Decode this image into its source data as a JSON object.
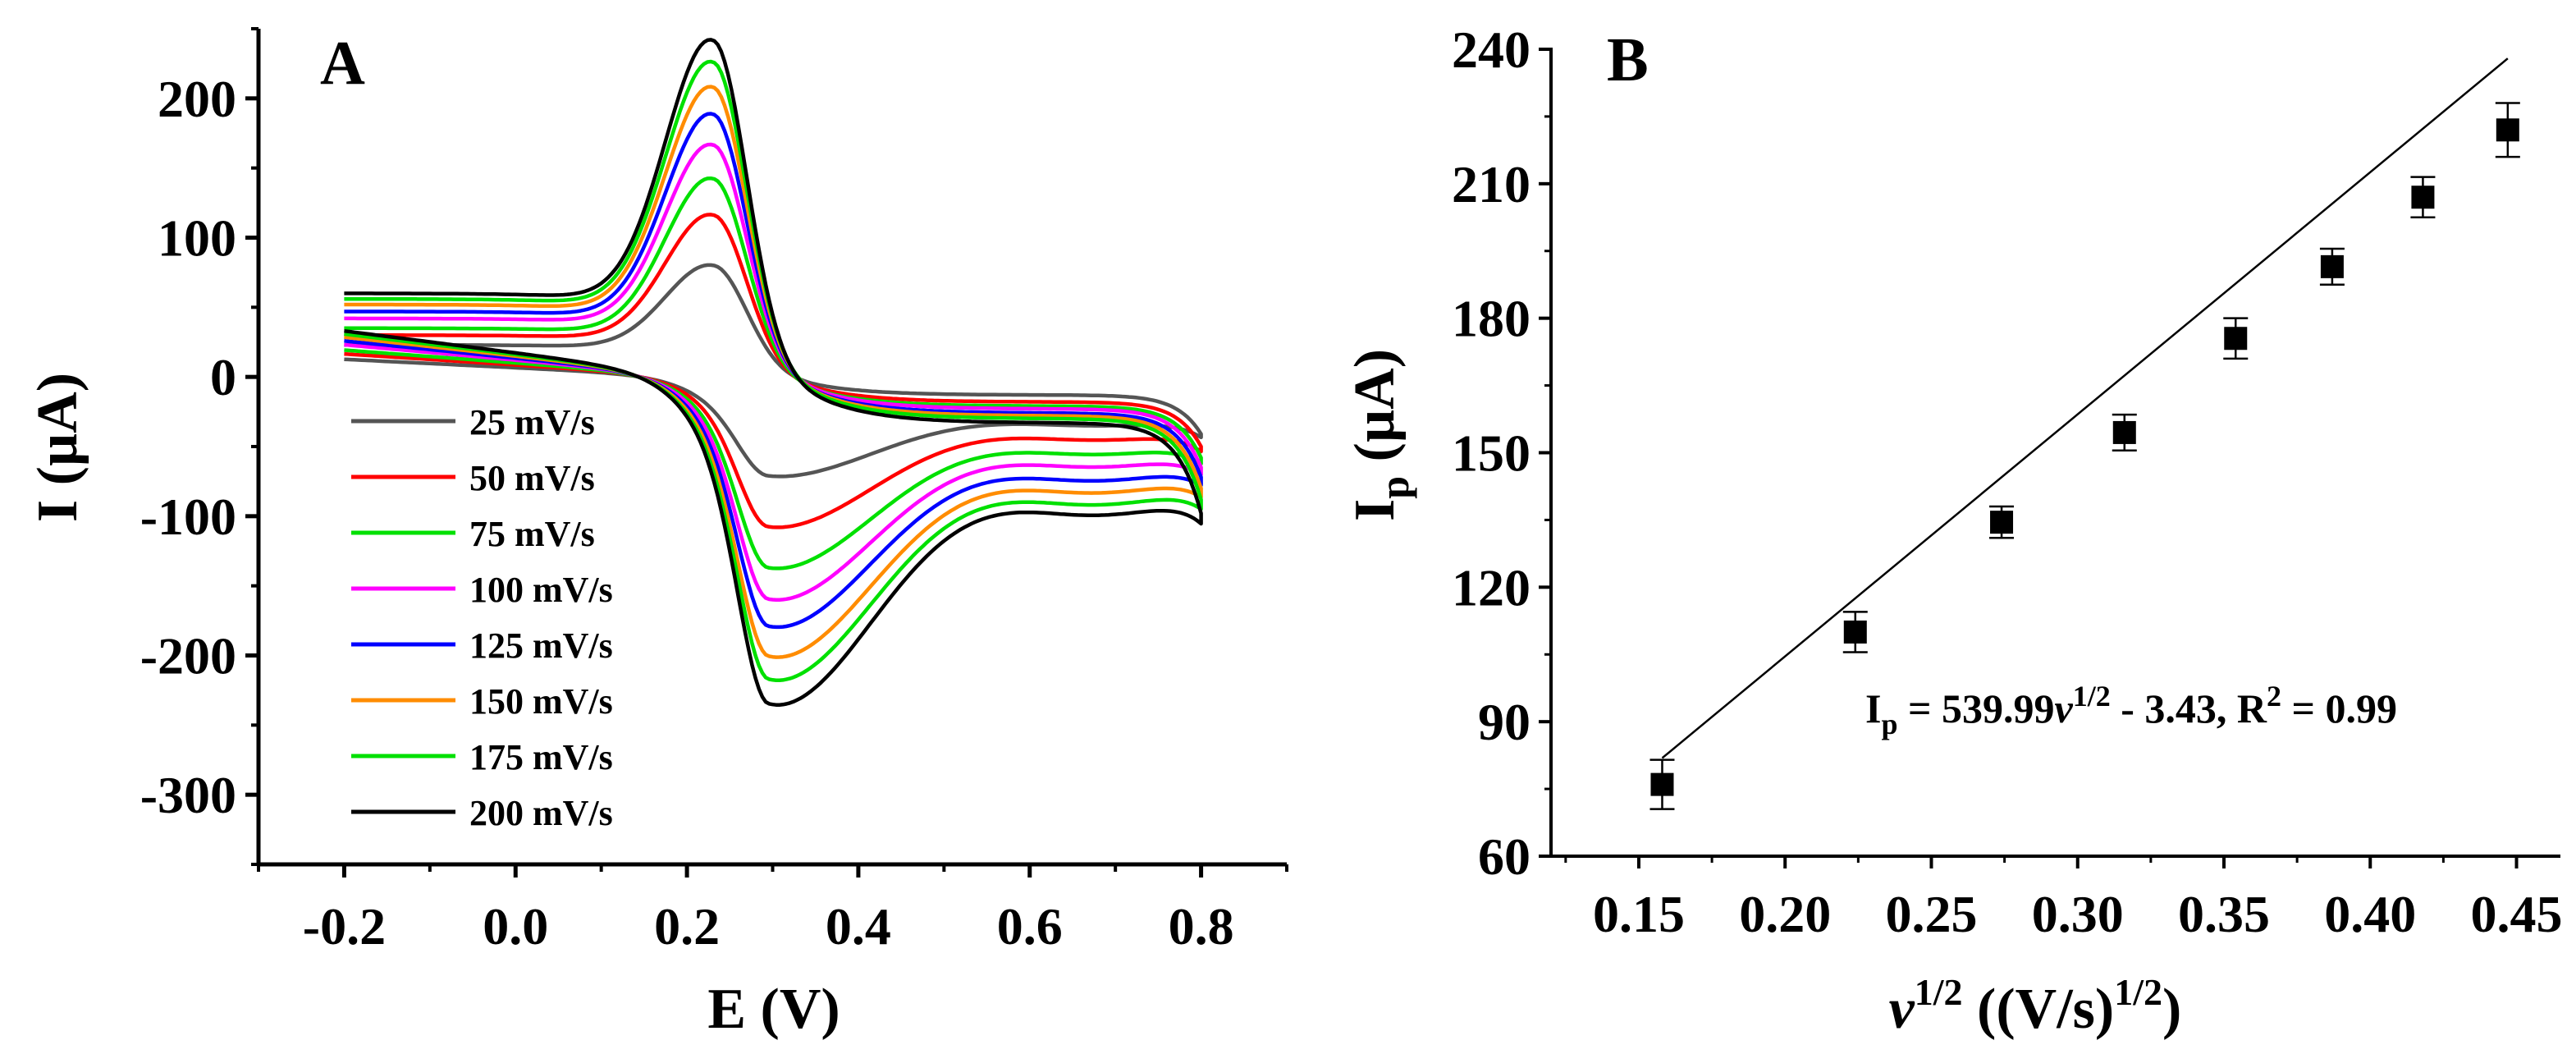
{
  "chart_data": [
    {
      "panel": "A",
      "type": "line",
      "title": "",
      "xlabel": "E (V)",
      "ylabel": "I (µA)",
      "xlim": [
        -0.3,
        0.9
      ],
      "ylim": [
        -350,
        250
      ],
      "xticks": [
        -0.2,
        0.0,
        0.2,
        0.4,
        0.6,
        0.8
      ],
      "xtick_labels": [
        "-0.2",
        "0.0",
        "0.2",
        "0.4",
        "0.6",
        "0.8"
      ],
      "yticks": [
        200,
        100,
        0,
        -100,
        -200,
        -300
      ],
      "ytick_labels": [
        "200",
        "100",
        "0",
        "-100",
        "-200",
        "-300"
      ],
      "legend_position": "lower-left",
      "series": [
        {
          "name": "25 mV/s",
          "color": "#555555",
          "ipa": 75,
          "ipc": -73,
          "cap_start": 23,
          "cap_end": -13,
          "tail_low": -28,
          "rev_end": -41
        },
        {
          "name": "50 mV/s",
          "color": "#ff0000",
          "ipa": 110,
          "ipc": -110,
          "cap_start": 30,
          "cap_end": -18,
          "tail_low": -35,
          "rev_end": -50
        },
        {
          "name": "75 mV/s",
          "color": "#00e000",
          "ipa": 135,
          "ipc": -140,
          "cap_start": 35,
          "cap_end": -21,
          "tail_low": -43,
          "rev_end": -58
        },
        {
          "name": "100 mV/s",
          "color": "#ff00ff",
          "ipa": 157,
          "ipc": -163,
          "cap_start": 42,
          "cap_end": -23,
          "tail_low": -50,
          "rev_end": -65
        },
        {
          "name": "125 mV/s",
          "color": "#0000ff",
          "ipa": 178,
          "ipc": -183,
          "cap_start": 47,
          "cap_end": -26,
          "tail_low": -58,
          "rev_end": -72
        },
        {
          "name": "150 mV/s",
          "color": "#ff8c00",
          "ipa": 196,
          "ipc": -205,
          "cap_start": 52,
          "cap_end": -28,
          "tail_low": -65,
          "rev_end": -80
        },
        {
          "name": "175 mV/s",
          "color": "#00e000",
          "ipa": 213,
          "ipc": -222,
          "cap_start": 56,
          "cap_end": -30,
          "tail_low": -72,
          "rev_end": -88
        },
        {
          "name": "200 mV/s",
          "color": "#000000",
          "ipa": 228,
          "ipc": -240,
          "cap_start": 60,
          "cap_end": -33,
          "tail_low": -78,
          "rev_end": -98
        }
      ]
    },
    {
      "panel": "B",
      "type": "scatter",
      "title": "",
      "xlabel": "v1/2 ((V/s)1/2)",
      "ylabel": "Ip (µA)",
      "xlim": [
        0.12,
        0.465
      ],
      "ylim": [
        60,
        240
      ],
      "xticks": [
        0.15,
        0.2,
        0.25,
        0.3,
        0.35,
        0.4,
        0.45
      ],
      "xtick_labels": [
        "0.15",
        "0.20",
        "0.25",
        "0.30",
        "0.35",
        "0.40",
        "0.45"
      ],
      "yticks": [
        60,
        90,
        120,
        150,
        180,
        210,
        240
      ],
      "ytick_labels": [
        "60",
        "90",
        "120",
        "150",
        "180",
        "210",
        "240"
      ],
      "points": [
        {
          "x": 0.158,
          "y": 76,
          "err": 5.5
        },
        {
          "x": 0.224,
          "y": 110,
          "err": 4.5
        },
        {
          "x": 0.274,
          "y": 134.5,
          "err": 3.5
        },
        {
          "x": 0.316,
          "y": 154.5,
          "err": 4
        },
        {
          "x": 0.354,
          "y": 175.5,
          "err": 4.5
        },
        {
          "x": 0.387,
          "y": 191.5,
          "err": 4
        },
        {
          "x": 0.418,
          "y": 207,
          "err": 4.5
        },
        {
          "x": 0.447,
          "y": 222,
          "err": 6
        }
      ],
      "fit": {
        "slope": 539.99,
        "intercept": -3.43,
        "x_range": [
          0.158,
          0.447
        ]
      },
      "annotation": {
        "lhs_base": "I",
        "lhs_sub": "p",
        "eq_mid": " = 539.99",
        "eq_v": "v",
        "eq_sup": "1/2",
        "eq_tail": " - 3.43, R",
        "r_sup": "2",
        "eq_end": " = 0.99"
      },
      "xlabel_parts": {
        "v": "v",
        "sup1": "1/2",
        "mid": " ((V/s)",
        "sup2": "1/2",
        "end": ")"
      },
      "ylabel_parts": {
        "base": "I",
        "sub": "p",
        "rest": " (µA)"
      }
    }
  ]
}
